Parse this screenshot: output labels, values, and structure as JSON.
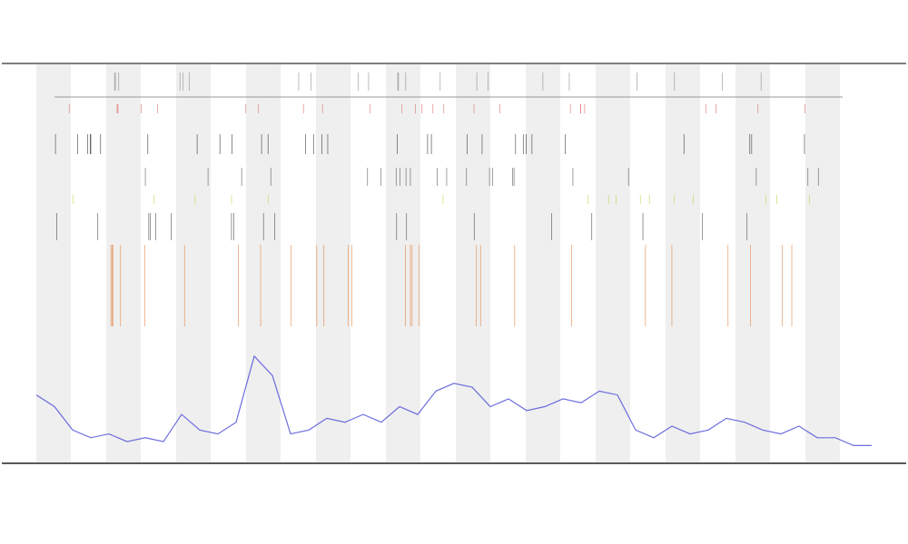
{
  "chart_data": {
    "type": "line",
    "values": [
      15,
      12,
      6,
      4,
      5,
      3,
      4,
      3,
      10,
      6,
      5,
      8,
      25,
      20,
      5,
      6,
      9,
      8,
      10,
      8,
      12,
      10,
      16,
      18,
      17,
      12,
      14,
      11,
      12,
      14,
      13,
      16,
      15,
      6,
      4,
      7,
      5,
      6,
      9,
      8,
      6,
      5,
      7,
      4,
      4,
      2,
      2
    ],
    "color": "#4a4ad8",
    "ylim": [
      0,
      100
    ]
  }
}
